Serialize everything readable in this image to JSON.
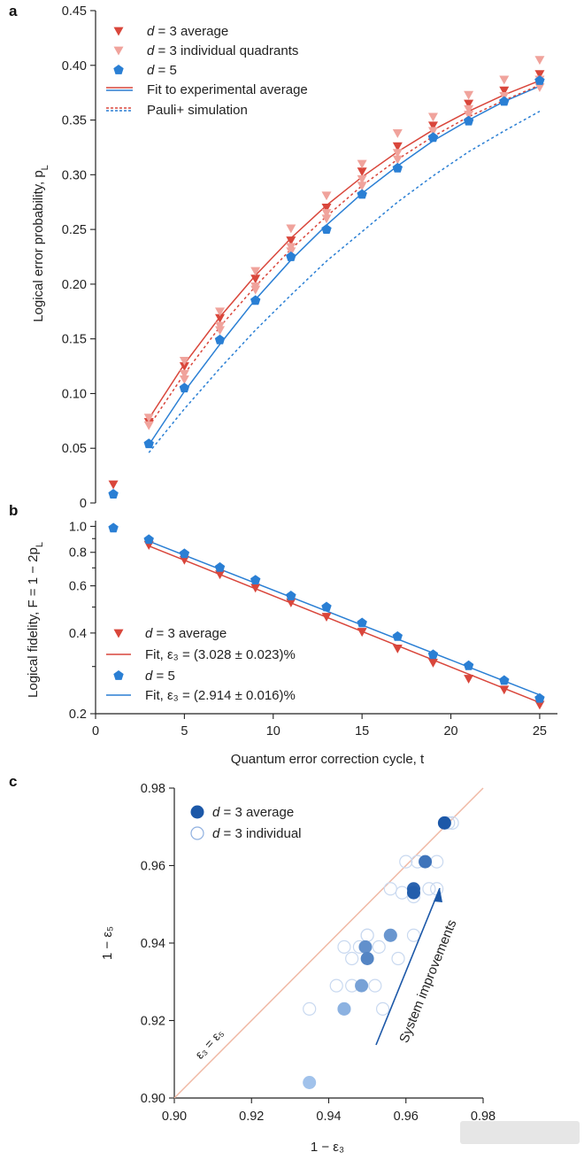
{
  "colors": {
    "d3": "#d9463b",
    "d3_individual": "#f0a39c",
    "d5": "#2a7fd4",
    "pauli_d3": "#d9463b",
    "pauli_d5": "#2a7fd4",
    "c_dark": "#1c58a8",
    "c_light": "#a8c8ef",
    "diag": "#f0b9a5"
  },
  "chart_data": [
    {
      "panel": "a",
      "type": "scatter",
      "xlabel": "",
      "ylabel": "Logical error probability, p",
      "ylabel_sub": "L",
      "xlim": [
        0,
        26
      ],
      "ylim": [
        0,
        0.45
      ],
      "yticks": [
        "0",
        "0.05",
        "0.10",
        "0.15",
        "0.20",
        "0.25",
        "0.30",
        "0.35",
        "0.40",
        "0.45"
      ],
      "ytick_values": [
        0,
        0.05,
        0.1,
        0.15,
        0.2,
        0.25,
        0.3,
        0.35,
        0.4,
        0.45
      ],
      "legend": [
        {
          "prefix": "d",
          "text": " = 3 average",
          "marker": "tri",
          "color": "d3"
        },
        {
          "prefix": "d",
          "text": " = 3 individual quadrants",
          "marker": "tri",
          "color": "d3_individual"
        },
        {
          "prefix": "d",
          "text": " = 5",
          "marker": "pent",
          "color": "d5"
        },
        {
          "prefix": "",
          "text": "Fit to experimental average",
          "marker": "solid-lines",
          "color": "d3"
        },
        {
          "prefix": "",
          "text": "Pauli+ simulation",
          "marker": "dotted-lines",
          "color": "d3"
        }
      ],
      "series": [
        {
          "name": "d = 3 average",
          "marker": "tri",
          "color": "d3",
          "x": [
            1,
            3,
            5,
            7,
            9,
            11,
            13,
            15,
            17,
            19,
            21,
            23,
            25
          ],
          "y": [
            0.017,
            0.074,
            0.125,
            0.169,
            0.205,
            0.24,
            0.27,
            0.303,
            0.326,
            0.345,
            0.365,
            0.377,
            0.392
          ]
        },
        {
          "name": "d = 3 individual quadrants",
          "marker": "tri",
          "color": "d3_individual",
          "x": [
            3,
            3,
            5,
            5,
            5,
            7,
            7,
            7,
            9,
            9,
            9,
            11,
            11,
            11,
            13,
            13,
            13,
            15,
            15,
            15,
            17,
            17,
            17,
            19,
            19,
            21,
            21,
            21,
            23,
            23,
            25,
            25,
            25
          ],
          "y": [
            0.071,
            0.078,
            0.118,
            0.13,
            0.113,
            0.162,
            0.175,
            0.158,
            0.198,
            0.212,
            0.195,
            0.234,
            0.251,
            0.23,
            0.265,
            0.281,
            0.26,
            0.296,
            0.31,
            0.29,
            0.32,
            0.338,
            0.314,
            0.34,
            0.353,
            0.36,
            0.373,
            0.355,
            0.372,
            0.387,
            0.387,
            0.405,
            0.38
          ]
        },
        {
          "name": "d = 5",
          "marker": "pent",
          "color": "d5",
          "x": [
            1,
            3,
            5,
            7,
            9,
            11,
            13,
            15,
            17,
            19,
            21,
            23,
            25
          ],
          "y": [
            0.008,
            0.054,
            0.105,
            0.149,
            0.185,
            0.225,
            0.25,
            0.282,
            0.306,
            0.334,
            0.349,
            0.367,
            0.386
          ]
        },
        {
          "name": "Fit to experimental average (d = 3)",
          "line": "solid",
          "color": "d3",
          "x": [
            3,
            5,
            7,
            9,
            11,
            13,
            15,
            17,
            19,
            21,
            23,
            25
          ],
          "y": [
            0.077,
            0.127,
            0.17,
            0.208,
            0.242,
            0.272,
            0.298,
            0.321,
            0.341,
            0.358,
            0.373,
            0.386
          ]
        },
        {
          "name": "Fit to experimental average (d = 5)",
          "line": "solid",
          "color": "d5",
          "x": [
            3,
            5,
            7,
            9,
            11,
            13,
            15,
            17,
            19,
            21,
            23,
            25
          ],
          "y": [
            0.053,
            0.102,
            0.145,
            0.186,
            0.222,
            0.254,
            0.283,
            0.308,
            0.331,
            0.35,
            0.367,
            0.381
          ]
        },
        {
          "name": "Pauli+ simulation (d = 3)",
          "line": "dotted",
          "color": "pauli_d3",
          "x": [
            3,
            5,
            7,
            9,
            11,
            13,
            15,
            17,
            19,
            21,
            23,
            25
          ],
          "y": [
            0.07,
            0.118,
            0.161,
            0.198,
            0.232,
            0.262,
            0.29,
            0.314,
            0.335,
            0.353,
            0.368,
            0.382
          ]
        },
        {
          "name": "Pauli+ simulation (d = 5)",
          "line": "dotted",
          "color": "pauli_d5",
          "x": [
            3,
            5,
            7,
            9,
            11,
            13,
            15,
            17,
            19,
            21,
            23,
            25
          ],
          "y": [
            0.046,
            0.086,
            0.123,
            0.158,
            0.19,
            0.221,
            0.248,
            0.275,
            0.299,
            0.321,
            0.34,
            0.358
          ]
        }
      ]
    },
    {
      "panel": "b",
      "type": "scatter",
      "scale": "log-y",
      "xlabel": "Quantum error correction cycle, t",
      "ylabel": "Logical fidelity, F = 1 − 2p",
      "ylabel_sub": "L",
      "xlim": [
        0,
        26
      ],
      "ylim": [
        0.2,
        1.05
      ],
      "xticks": [
        "0",
        "5",
        "10",
        "15",
        "20",
        "25"
      ],
      "xtick_values": [
        0,
        5,
        10,
        15,
        20,
        25
      ],
      "yticks_labeled": [
        "0.2",
        "0.4",
        "0.6",
        "0.8",
        "1.0"
      ],
      "ytick_values": [
        0.2,
        0.4,
        0.6,
        0.8,
        1.0
      ],
      "yticks_minor": [
        0.3,
        0.5,
        0.7,
        0.9
      ],
      "legend": [
        {
          "prefix": "d",
          "text": " = 3 average",
          "marker": "tri",
          "color": "d3"
        },
        {
          "prefix": "",
          "text": "Fit, ε₃ = (3.028 ± 0.023)%",
          "marker": "line",
          "color": "d3"
        },
        {
          "prefix": "d",
          "text": " = 5",
          "marker": "pent",
          "color": "d5"
        },
        {
          "prefix": "",
          "text": "Fit, ε₃ = (2.914 ± 0.016)%",
          "marker": "line",
          "color": "d5"
        }
      ],
      "series": [
        {
          "name": "d = 3 average",
          "marker": "tri",
          "color": "d3",
          "x": [
            3,
            5,
            7,
            9,
            11,
            13,
            15,
            17,
            19,
            21,
            23,
            25
          ],
          "y": [
            0.852,
            0.75,
            0.662,
            0.59,
            0.52,
            0.46,
            0.404,
            0.35,
            0.31,
            0.27,
            0.246,
            0.216
          ]
        },
        {
          "name": "d = 5",
          "marker": "pent",
          "color": "d5",
          "x": [
            1,
            3,
            5,
            7,
            9,
            11,
            13,
            15,
            17,
            19,
            21,
            23,
            25
          ],
          "y": [
            0.985,
            0.892,
            0.79,
            0.702,
            0.63,
            0.55,
            0.5,
            0.436,
            0.388,
            0.332,
            0.302,
            0.266,
            0.228
          ]
        },
        {
          "name": "Fit d = 3",
          "line": "solid",
          "color": "d3",
          "x": [
            3,
            25
          ],
          "y": [
            0.845,
            0.22
          ]
        },
        {
          "name": "Fit d = 5",
          "line": "solid",
          "color": "d5",
          "x": [
            3,
            25
          ],
          "y": [
            0.88,
            0.235
          ]
        }
      ]
    },
    {
      "panel": "c",
      "type": "scatter",
      "xlabel": "1 − ε₃",
      "ylabel": "1 − ε₅",
      "xlim": [
        0.9,
        0.98
      ],
      "ylim": [
        0.9,
        0.98
      ],
      "xticks": [
        "0.90",
        "0.92",
        "0.94",
        "0.96",
        "0.98"
      ],
      "xtick_values": [
        0.9,
        0.92,
        0.94,
        0.96,
        0.98
      ],
      "yticks": [
        "0.90",
        "0.92",
        "0.94",
        "0.96",
        "0.98"
      ],
      "ytick_values": [
        0.9,
        0.92,
        0.94,
        0.96,
        0.98
      ],
      "diagonal_label": "ε₃ = ε₅",
      "arrow_label": "System improvements",
      "legend": [
        {
          "prefix": "d",
          "text": " = 3 average",
          "marker": "filled-circle"
        },
        {
          "prefix": "d",
          "text": " = 3 individual",
          "marker": "open-circle"
        }
      ],
      "series": [
        {
          "name": "d = 3 average",
          "x": [
            0.935,
            0.944,
            0.9485,
            0.9495,
            0.95,
            0.956,
            0.962,
            0.962,
            0.965,
            0.97
          ],
          "y": [
            0.904,
            0.923,
            0.929,
            0.939,
            0.936,
            0.942,
            0.954,
            0.953,
            0.961,
            0.971
          ],
          "shade": [
            0.05,
            0.2,
            0.35,
            0.5,
            0.6,
            0.45,
            0.9,
            0.95,
            0.75,
            1.0
          ]
        },
        {
          "name": "d = 3 individual",
          "x": [
            0.935,
            0.944,
            0.954,
            0.942,
            0.946,
            0.952,
            0.944,
            0.948,
            0.953,
            0.946,
            0.95,
            0.958,
            0.95,
            0.956,
            0.962,
            0.956,
            0.959,
            0.962,
            0.966,
            0.96,
            0.963,
            0.968,
            0.968,
            0.971,
            0.972
          ],
          "y": [
            0.923,
            0.923,
            0.923,
            0.929,
            0.929,
            0.929,
            0.939,
            0.939,
            0.939,
            0.936,
            0.942,
            0.936,
            0.942,
            0.942,
            0.942,
            0.954,
            0.953,
            0.952,
            0.954,
            0.961,
            0.961,
            0.961,
            0.954,
            0.971,
            0.971
          ]
        }
      ]
    }
  ]
}
